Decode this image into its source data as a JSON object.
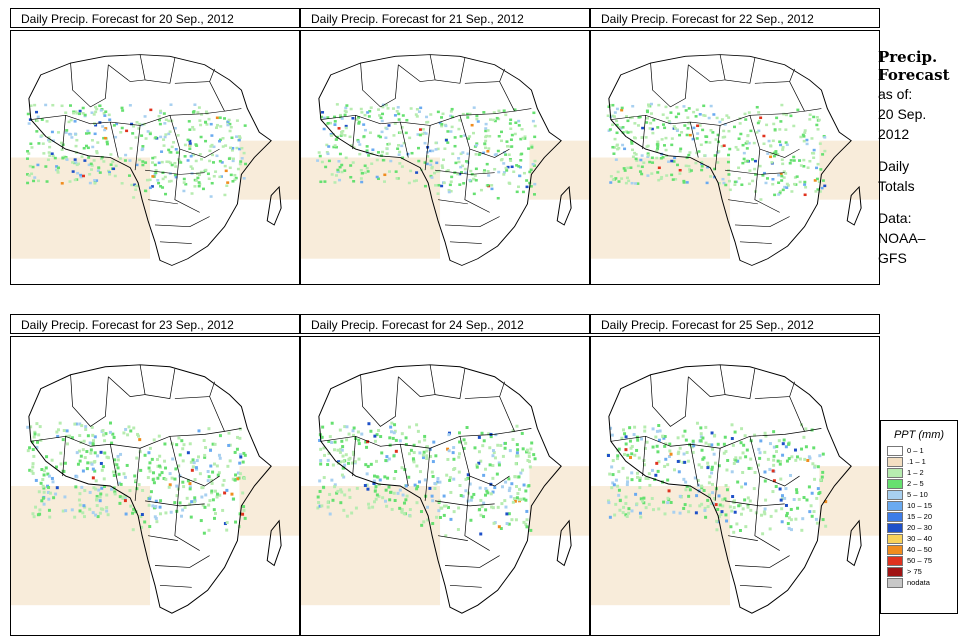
{
  "panels": [
    {
      "title": "Daily Precip. Forecast for  20 Sep., 2012"
    },
    {
      "title": "Daily Precip. Forecast for  21 Sep., 2012"
    },
    {
      "title": "Daily Precip. Forecast for  22 Sep., 2012"
    },
    {
      "title": "Daily Precip. Forecast for  23 Sep., 2012"
    },
    {
      "title": "Daily Precip. Forecast for  24 Sep., 2012"
    },
    {
      "title": "Daily Precip. Forecast for  25 Sep., 2012"
    }
  ],
  "side": {
    "title1": "Precip.",
    "title2": "Forecast",
    "asof": "as of:",
    "date1": "20 Sep.",
    "date2": "2012",
    "daily1": "Daily",
    "daily2": "Totals",
    "data1": "Data:",
    "data2": "NOAA–",
    "data3": "GFS"
  },
  "legend": {
    "title": "PPT (mm)",
    "items": [
      {
        "label": "0 – 1",
        "color": "#ffffff"
      },
      {
        "label": ".1 – 1",
        "color": "#f3dfc2"
      },
      {
        "label": "1 – 2",
        "color": "#b7ecb0"
      },
      {
        "label": "2 – 5",
        "color": "#66e070"
      },
      {
        "label": "5 – 10",
        "color": "#a8d0f0"
      },
      {
        "label": "10 – 15",
        "color": "#6aaaf0"
      },
      {
        "label": "15 – 20",
        "color": "#3c7ce8"
      },
      {
        "label": "20 – 30",
        "color": "#1e50c8"
      },
      {
        "label": "30 – 40",
        "color": "#f8d25a"
      },
      {
        "label": "40 – 50",
        "color": "#f08c1e"
      },
      {
        "label": "50 – 75",
        "color": "#e0321e"
      },
      {
        "label": "> 75",
        "color": "#a01414"
      },
      {
        "label": "nodata",
        "color": "#c8c8c8"
      }
    ]
  }
}
